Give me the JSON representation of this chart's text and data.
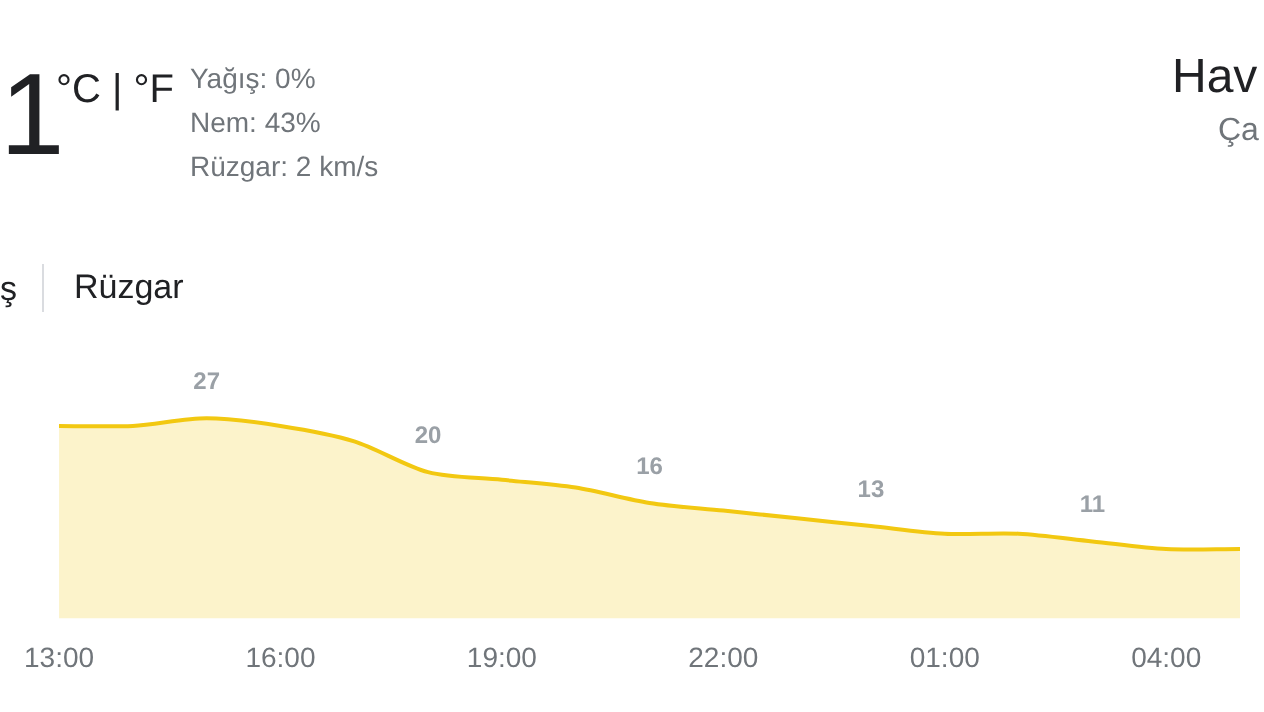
{
  "chart_data": {
    "type": "area",
    "categories": [
      "13:00",
      null,
      null,
      "16:00",
      null,
      null,
      "19:00",
      null,
      null,
      "22:00",
      null,
      null,
      "01:00",
      null,
      null,
      "04:00",
      null
    ],
    "values": [
      26,
      26,
      27,
      26,
      24,
      20,
      19,
      18,
      16,
      15,
      14,
      13,
      12,
      12,
      11,
      10,
      10
    ],
    "value_labels": [
      null,
      null,
      "27",
      null,
      null,
      "20",
      null,
      null,
      "16",
      null,
      null,
      "13",
      null,
      null,
      "11",
      null,
      null
    ],
    "color": "#f2c811",
    "grid": false,
    "legend": false,
    "annotations": [
      "1",
      "°C | °F",
      "Yağış: 0%",
      "Nem: 43%",
      "Rüzgar: 2 km/s",
      "ş",
      "Rüzgar",
      "Hav",
      "Ça"
    ]
  }
}
